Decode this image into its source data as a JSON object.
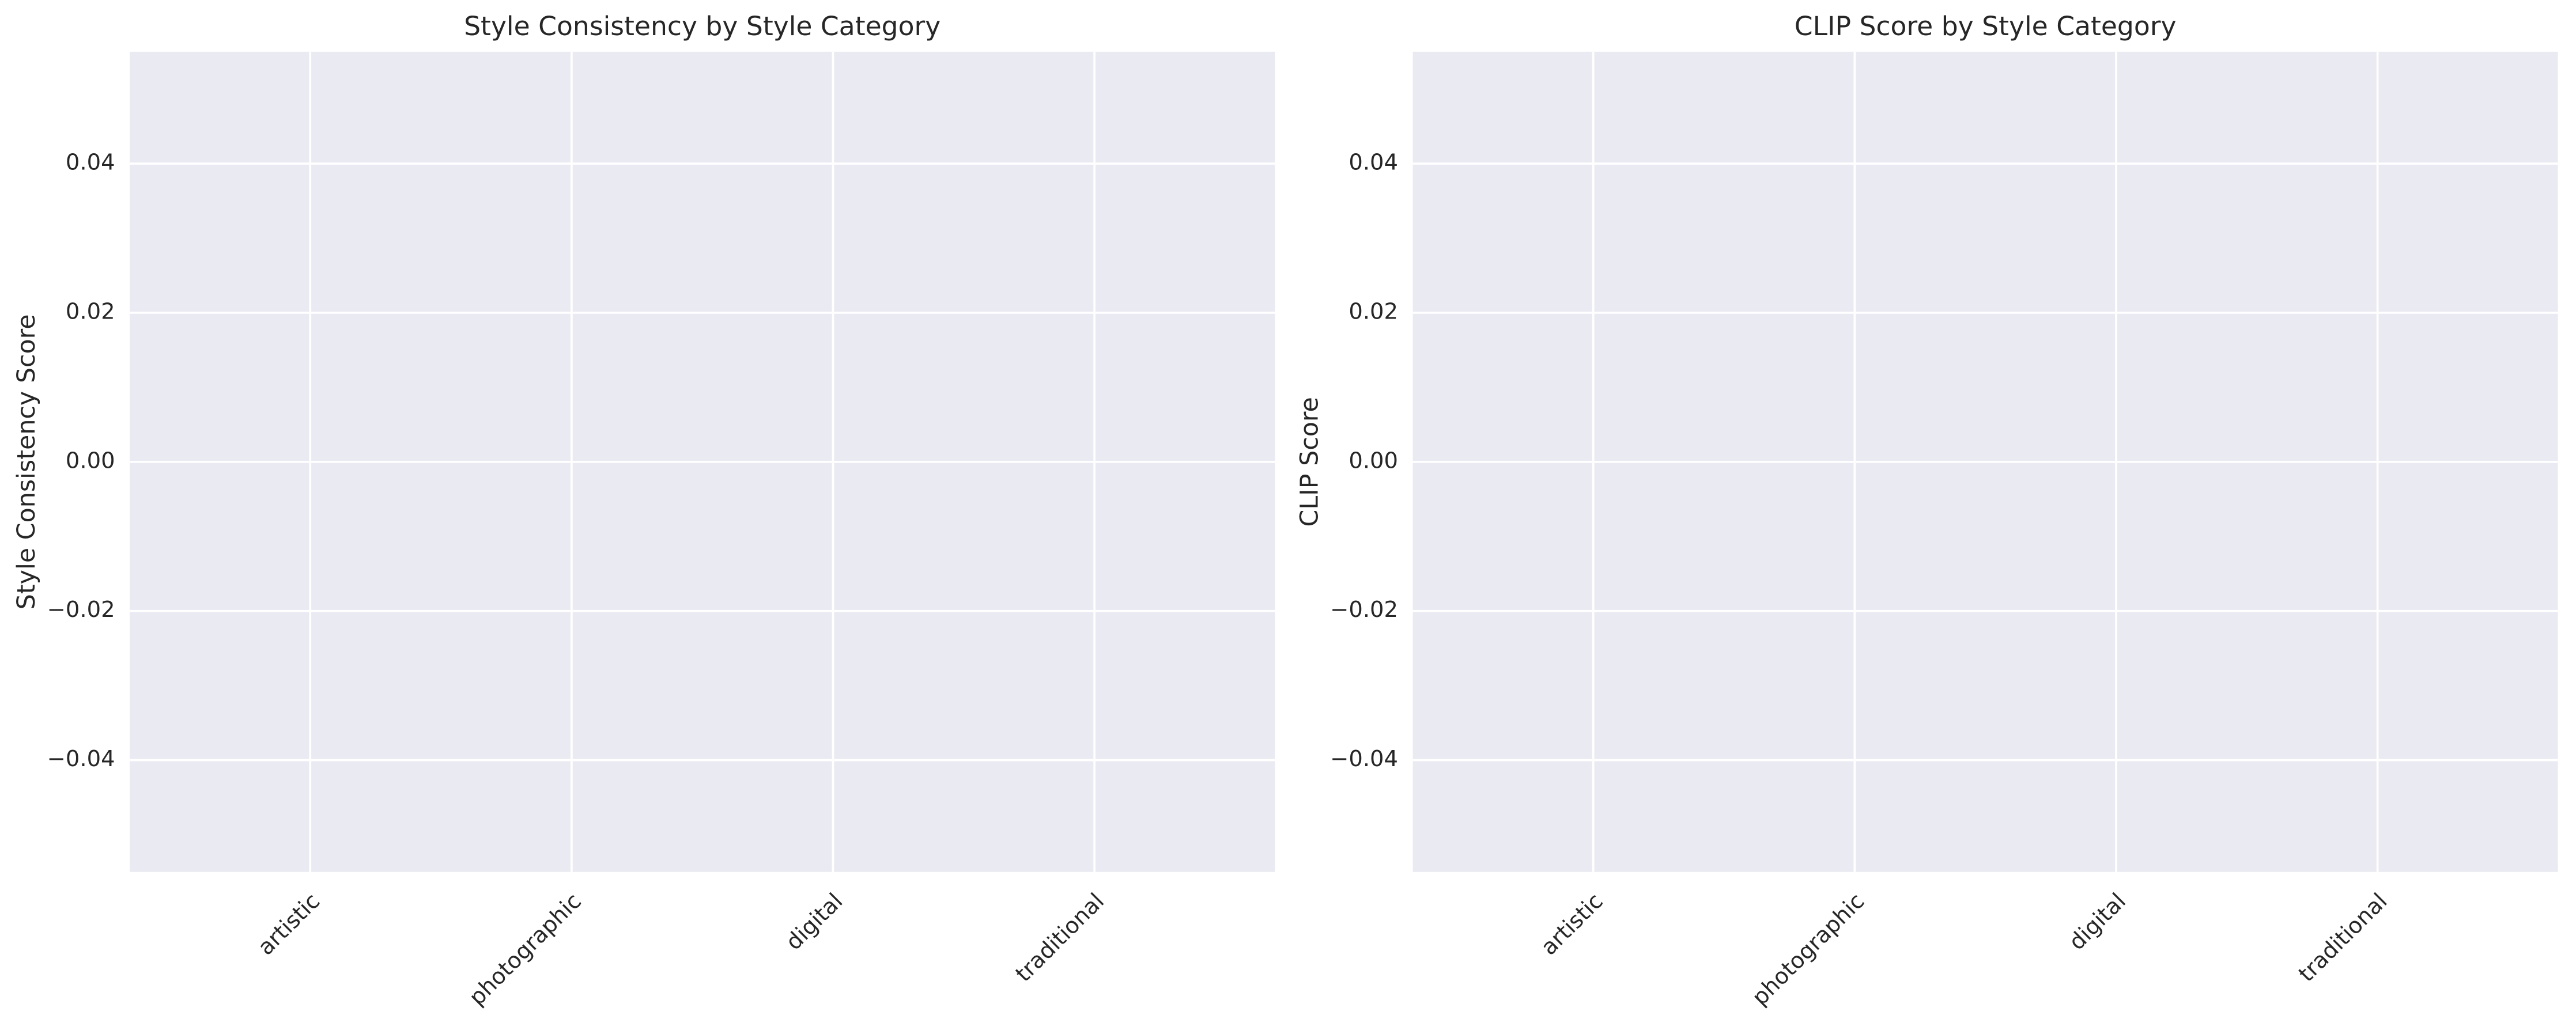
{
  "chart_data": [
    {
      "type": "bar",
      "title": "Style Consistency by Style Category",
      "y_label": "Style Consistency Score",
      "categories": [
        "artistic",
        "photographic",
        "digital",
        "traditional"
      ],
      "values": [
        0,
        0,
        0,
        0
      ],
      "ylim": [
        -0.055,
        0.055
      ],
      "yticks": [
        -0.04,
        -0.02,
        0.0,
        0.02,
        0.04
      ],
      "grid": true
    },
    {
      "type": "bar",
      "title": "CLIP Score by Style Category",
      "y_label": "CLIP Score",
      "categories": [
        "artistic",
        "photographic",
        "digital",
        "traditional"
      ],
      "values": [
        0,
        0,
        0,
        0
      ],
      "ylim": [
        -0.055,
        0.055
      ],
      "yticks": [
        -0.04,
        -0.02,
        0.0,
        0.02,
        0.04
      ],
      "grid": true
    }
  ]
}
